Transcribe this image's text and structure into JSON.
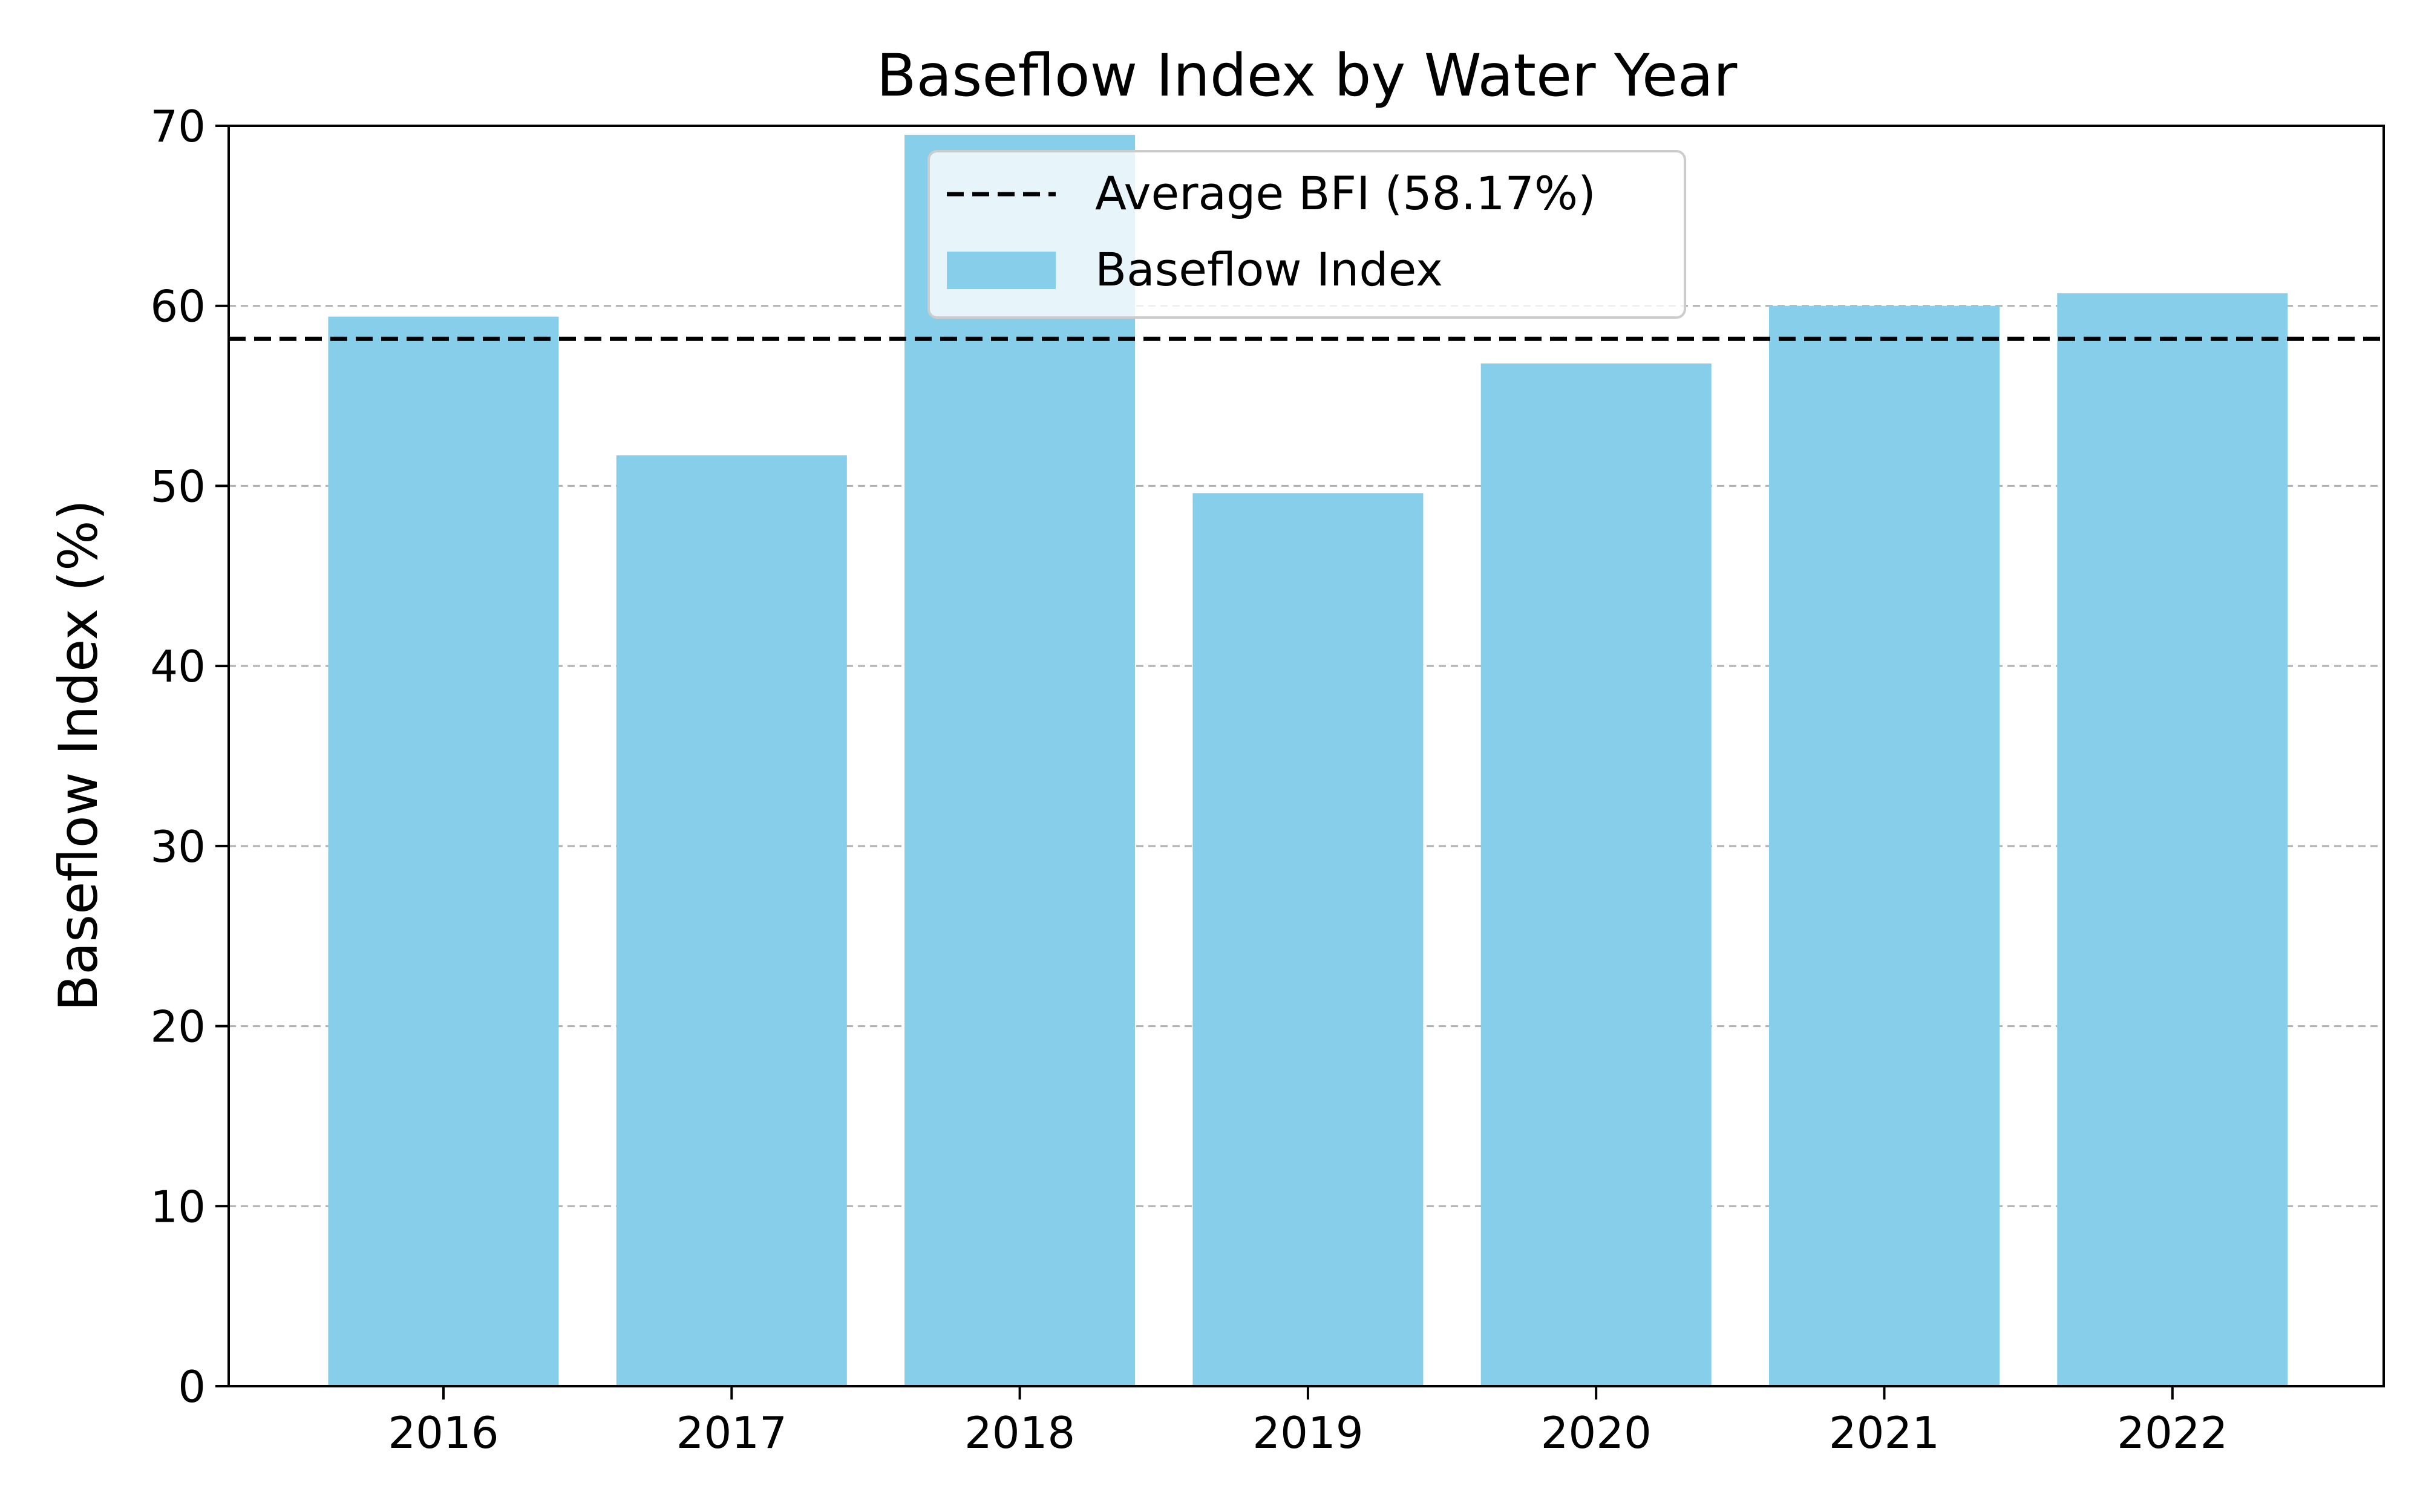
{
  "chart_data": {
    "type": "bar",
    "title": "Baseflow Index by Water Year",
    "xlabel": "",
    "ylabel": "Baseflow Index (%)",
    "categories": [
      "2016",
      "2017",
      "2018",
      "2019",
      "2020",
      "2021",
      "2022"
    ],
    "series": [
      {
        "name": "Baseflow Index",
        "values": [
          59.4,
          51.7,
          69.5,
          49.6,
          56.8,
          60.0,
          60.7
        ],
        "color": "#87ceeb"
      }
    ],
    "reference_lines": [
      {
        "name": "Average BFI (58.17%)",
        "value": 58.17,
        "style": "dashed",
        "color": "#000000"
      }
    ],
    "ylim": [
      0,
      70
    ],
    "yticks": [
      "0",
      "10",
      "20",
      "30",
      "40",
      "50",
      "60",
      "70"
    ],
    "grid": "y dashed",
    "legend_position": "top-center"
  }
}
